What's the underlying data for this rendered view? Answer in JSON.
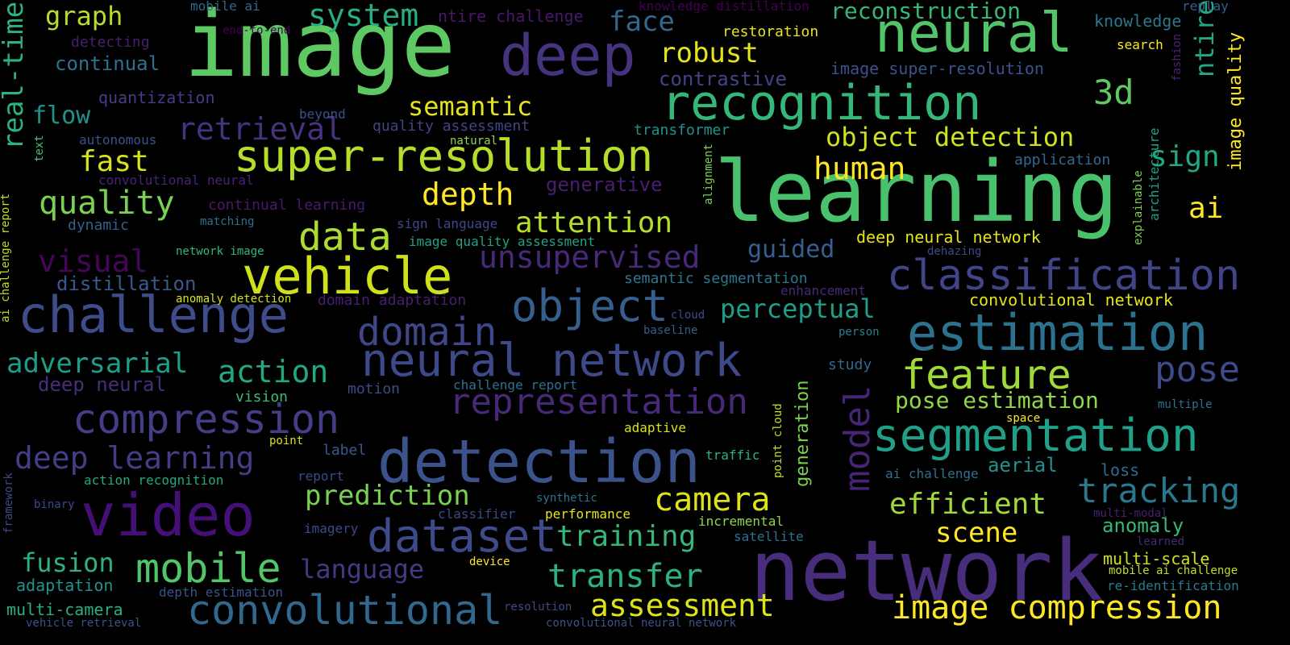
{
  "words": [
    {
      "t": "image",
      "c": "#5ec962"
    },
    {
      "t": "learning",
      "c": "#4ac16d"
    },
    {
      "t": "network",
      "c": "#472d7b"
    },
    {
      "t": "deep",
      "c": "#46337e"
    },
    {
      "t": "neural",
      "c": "#52c569"
    },
    {
      "t": "detection",
      "c": "#3b528b"
    },
    {
      "t": "video",
      "c": "#440f76"
    },
    {
      "t": "recognition",
      "c": "#35b779"
    },
    {
      "t": "neural network",
      "c": "#3e4989"
    },
    {
      "t": "super-resolution",
      "c": "#b5de2b"
    },
    {
      "t": "estimation",
      "c": "#2c728e"
    },
    {
      "t": "segmentation",
      "c": "#1fa088"
    },
    {
      "t": "classification",
      "c": "#414487"
    },
    {
      "t": "challenge",
      "c": "#3e4c8a"
    },
    {
      "t": "vehicle",
      "c": "#d0e11c"
    },
    {
      "t": "convolutional",
      "c": "#31688e"
    },
    {
      "t": "compression",
      "c": "#433e85"
    },
    {
      "t": "dataset",
      "c": "#3e4a89"
    },
    {
      "t": "object",
      "c": "#355f8d"
    },
    {
      "t": "domain",
      "c": "#3f4788"
    },
    {
      "t": "model",
      "c": "#482475"
    },
    {
      "t": "feature",
      "c": "#a0da39"
    },
    {
      "t": "representation",
      "c": "#482878"
    },
    {
      "t": "data",
      "c": "#addc30"
    },
    {
      "t": "system",
      "c": "#29af7f"
    },
    {
      "t": "image compression",
      "c": "#fde725"
    },
    {
      "t": "mobile",
      "c": "#52c569"
    },
    {
      "t": "tracking",
      "c": "#2a788e"
    },
    {
      "t": "pose",
      "c": "#3e4a89"
    },
    {
      "t": "unsupervised",
      "c": "#482878"
    },
    {
      "t": "deep learning",
      "c": "#433e85"
    },
    {
      "t": "camera",
      "c": "#dde318"
    },
    {
      "t": "quality",
      "c": "#7ad151"
    },
    {
      "t": "retrieval",
      "c": "#46337e"
    },
    {
      "t": "transfer",
      "c": "#2db27d"
    },
    {
      "t": "3d",
      "c": "#5ec962"
    },
    {
      "t": "visual",
      "c": "#450559"
    },
    {
      "t": "real-time",
      "c": "#2db27d"
    },
    {
      "t": "assessment",
      "c": "#dde318"
    },
    {
      "t": "depth",
      "c": "#fde725"
    },
    {
      "t": "attention",
      "c": "#b5de2b"
    },
    {
      "t": "object detection",
      "c": "#d0e11c"
    },
    {
      "t": "training",
      "c": "#35b779"
    },
    {
      "t": "efficient",
      "c": "#a0da39"
    },
    {
      "t": "action",
      "c": "#22a884"
    },
    {
      "t": "adversarial",
      "c": "#1f9e89"
    },
    {
      "t": "prediction",
      "c": "#7ad151"
    },
    {
      "t": "language",
      "c": "#443983"
    },
    {
      "t": "semantic",
      "c": "#e5e419"
    },
    {
      "t": "robust",
      "c": "#e5e419"
    },
    {
      "t": "perceptual",
      "c": "#1f9e89"
    },
    {
      "t": "fast",
      "c": "#d8e219"
    },
    {
      "t": "fusion",
      "c": "#2db27d"
    },
    {
      "t": "human",
      "c": "#fde725"
    },
    {
      "t": "sign",
      "c": "#22a884"
    },
    {
      "t": "scene",
      "c": "#fde725"
    },
    {
      "t": "face",
      "c": "#31688e"
    },
    {
      "t": "reconstruction",
      "c": "#37b878"
    },
    {
      "t": "pose estimation",
      "c": "#8fd744"
    },
    {
      "t": "graph",
      "c": "#b5de2b"
    },
    {
      "t": "ntire",
      "c": "#22a884"
    },
    {
      "t": "guided",
      "c": "#355f8d"
    },
    {
      "t": "flow",
      "c": "#21918c"
    },
    {
      "t": "distillation",
      "c": "#38598c"
    },
    {
      "t": "contrastive",
      "c": "#414487"
    },
    {
      "t": "generation",
      "c": "#7ad151"
    },
    {
      "t": "aerial",
      "c": "#21918c"
    },
    {
      "t": "anomaly",
      "c": "#37b878"
    },
    {
      "t": "continual",
      "c": "#2c728e"
    },
    {
      "t": "deep neural",
      "c": "#472d7b"
    },
    {
      "t": "image quality",
      "c": "#fde725"
    },
    {
      "t": "generative",
      "c": "#481f70"
    },
    {
      "t": "knowledge",
      "c": "#2a788e"
    },
    {
      "t": "multi-scale",
      "c": "#d0e11c"
    },
    {
      "t": "ai",
      "c": "#fde725"
    },
    {
      "t": "multi-camera",
      "c": "#29af7f"
    },
    {
      "t": "loss",
      "c": "#306a8e"
    },
    {
      "t": "adaptation",
      "c": "#20928c"
    },
    {
      "t": "image super-resolution",
      "c": "#3b528b"
    },
    {
      "t": "quantization",
      "c": "#433e85"
    },
    {
      "t": "convolutional network",
      "c": "#e5e419"
    },
    {
      "t": "deep neural network",
      "c": "#e5e419"
    },
    {
      "t": "transformer",
      "c": "#21918c"
    },
    {
      "t": "semantic segmentation",
      "c": "#2a788e"
    },
    {
      "t": "dynamic",
      "c": "#355f8d"
    },
    {
      "t": "continual learning",
      "c": "#481a6c"
    },
    {
      "t": "domain adaptation",
      "c": "#481f70"
    },
    {
      "t": "depth estimation",
      "c": "#3b528b"
    },
    {
      "t": "action recognition",
      "c": "#22a884"
    },
    {
      "t": "motion",
      "c": "#3e4a89"
    },
    {
      "t": "vision",
      "c": "#3aba76"
    },
    {
      "t": "study",
      "c": "#31688e"
    },
    {
      "t": "quality assessment",
      "c": "#414487"
    },
    {
      "t": "challenge report",
      "c": "#2c728e"
    },
    {
      "t": "restoration",
      "c": "#e5e419"
    },
    {
      "t": "ntire challenge",
      "c": "#48186a"
    },
    {
      "t": "adaptive",
      "c": "#d8e219"
    },
    {
      "t": "label",
      "c": "#38598c"
    },
    {
      "t": "application",
      "c": "#31688e"
    },
    {
      "t": "architecture",
      "c": "#1f9e89"
    },
    {
      "t": "re-identification",
      "c": "#2a788e"
    },
    {
      "t": "autonomous",
      "c": "#3b528b"
    },
    {
      "t": "imagery",
      "c": "#3e4989"
    },
    {
      "t": "report",
      "c": "#3e4989"
    },
    {
      "t": "mobile ai",
      "c": "#31688e"
    },
    {
      "t": "end-to-end",
      "c": "#440154"
    },
    {
      "t": "detecting",
      "c": "#481f70"
    },
    {
      "t": "knowledge distillation",
      "c": "#440154"
    },
    {
      "t": "replay",
      "c": "#355f8d"
    },
    {
      "t": "search",
      "c": "#fde725"
    },
    {
      "t": "fashion",
      "c": "#482475"
    },
    {
      "t": "beyond",
      "c": "#3b528b"
    },
    {
      "t": "natural",
      "c": "#8fd744"
    },
    {
      "t": "text",
      "c": "#48c16e"
    },
    {
      "t": "convolutional neural",
      "c": "#482475"
    },
    {
      "t": "matching",
      "c": "#2c728e"
    },
    {
      "t": "sign language",
      "c": "#3e4989"
    },
    {
      "t": "image quality assessment",
      "c": "#20a386"
    },
    {
      "t": "alignment",
      "c": "#7ad151"
    },
    {
      "t": "explainable",
      "c": "#7ad151"
    },
    {
      "t": "network image",
      "c": "#35b779"
    },
    {
      "t": "anomaly detection",
      "c": "#d8e219"
    },
    {
      "t": "ai challenge report",
      "c": "#c2df23"
    },
    {
      "t": "dehazing",
      "c": "#3e4a89"
    },
    {
      "t": "enhancement",
      "c": "#482878"
    },
    {
      "t": "cloud",
      "c": "#3e4989"
    },
    {
      "t": "baseline",
      "c": "#355f8d"
    },
    {
      "t": "person",
      "c": "#277f8e"
    },
    {
      "t": "point",
      "c": "#d8e219"
    },
    {
      "t": "point cloud",
      "c": "#bddf26"
    },
    {
      "t": "traffic",
      "c": "#2db27d"
    },
    {
      "t": "synthetic",
      "c": "#2c728e"
    },
    {
      "t": "classifier",
      "c": "#3e4989"
    },
    {
      "t": "performance",
      "c": "#e5e419"
    },
    {
      "t": "incremental",
      "c": "#8fd744"
    },
    {
      "t": "satellite",
      "c": "#2c728e"
    },
    {
      "t": "device",
      "c": "#fde725"
    },
    {
      "t": "resolution",
      "c": "#3e4989"
    },
    {
      "t": "convolutional neural network",
      "c": "#3b528b"
    },
    {
      "t": "vehicle retrieval",
      "c": "#3b528b"
    },
    {
      "t": "framework",
      "c": "#3e4989"
    },
    {
      "t": "binary",
      "c": "#3e4989"
    },
    {
      "t": "ai challenge",
      "c": "#2c728e"
    },
    {
      "t": "multi-modal",
      "c": "#481f70"
    },
    {
      "t": "learned",
      "c": "#482878"
    },
    {
      "t": "mobile ai challenge",
      "c": "#bddf26"
    },
    {
      "t": "multiple",
      "c": "#2c728e"
    },
    {
      "t": "space",
      "c": "#fde725"
    }
  ]
}
